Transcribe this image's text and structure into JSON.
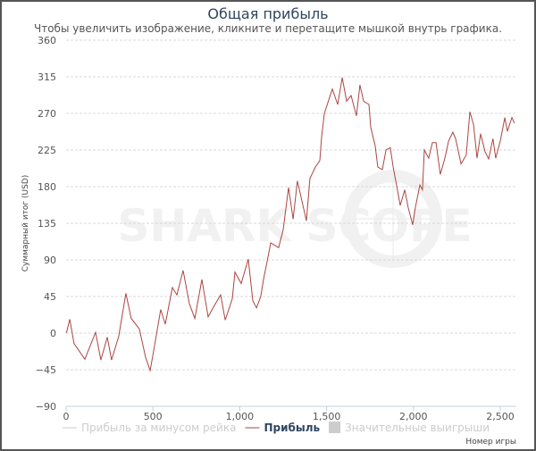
{
  "chart_data": {
    "type": "line",
    "title": "Общая прибыль",
    "subtitle": "Чтобы увеличить изображение, кликните и перетащите мышкой внутрь графика.",
    "xlabel": "Номер игры",
    "ylabel": "Суммарный итог (USD)",
    "xlim": [
      0,
      2600
    ],
    "ylim": [
      -90,
      360
    ],
    "x_ticks": [
      0,
      500,
      1000,
      1500,
      2000,
      2500
    ],
    "x_tick_labels": [
      "0",
      "500",
      "1,000",
      "1,500",
      "2,000",
      "2,500"
    ],
    "y_ticks": [
      -90,
      -45,
      0,
      45,
      90,
      135,
      180,
      225,
      270,
      315,
      360
    ],
    "y_tick_labels": [
      "−90",
      "−45",
      "0",
      "45",
      "90",
      "135",
      "180",
      "225",
      "270",
      "315",
      "360"
    ],
    "grid": true,
    "legend_position": "bottom",
    "legend": [
      {
        "name": "Прибыль за минусом рейка",
        "color": "#cccccc",
        "active": false
      },
      {
        "name": "Прибыль",
        "color": "#aa4643",
        "active": true
      },
      {
        "name": "Значительные выигрыши",
        "color": "#cccccc",
        "active": false
      }
    ],
    "watermark": "SHARK SCOPE",
    "series": [
      {
        "name": "Прибыль",
        "color": "#aa4643",
        "x": [
          0,
          5,
          21,
          46,
          108,
          170,
          200,
          237,
          262,
          303,
          344,
          375,
          422,
          458,
          484,
          509,
          545,
          571,
          612,
          638,
          674,
          710,
          741,
          782,
          818,
          854,
          890,
          916,
          957,
          972,
          1008,
          1034,
          1049,
          1075,
          1096,
          1121,
          1137,
          1163,
          1178,
          1224,
          1250,
          1281,
          1307,
          1332,
          1384,
          1404,
          1435,
          1461,
          1471,
          1487,
          1533,
          1564,
          1590,
          1615,
          1641,
          1672,
          1692,
          1713,
          1744,
          1754,
          1780,
          1795,
          1821,
          1842,
          1867,
          1883,
          1908,
          1924,
          1950,
          1970,
          1996,
          2011,
          2037,
          2052,
          2063,
          2088,
          2109,
          2130,
          2155,
          2181,
          2202,
          2227,
          2243,
          2274,
          2304,
          2325,
          2346,
          2366,
          2387,
          2412,
          2433,
          2458,
          2474,
          2500,
          2526,
          2541,
          2567,
          2582
        ],
        "y": [
          0,
          3,
          17,
          -13,
          -32,
          1,
          -33,
          -5,
          -33,
          -4,
          49,
          18,
          5,
          -30,
          -46,
          -16,
          29,
          11,
          56,
          47,
          77,
          36,
          18,
          66,
          20,
          34,
          47,
          16,
          42,
          75,
          61,
          80,
          91,
          40,
          31,
          45,
          66,
          94,
          111,
          105,
          127,
          179,
          140,
          187,
          138,
          190,
          204,
          212,
          241,
          270,
          300,
          281,
          314,
          285,
          292,
          267,
          305,
          285,
          281,
          253,
          230,
          204,
          201,
          225,
          228,
          204,
          176,
          157,
          176,
          154,
          133,
          154,
          182,
          176,
          225,
          215,
          234,
          234,
          195,
          215,
          236,
          247,
          239,
          208,
          219,
          272,
          256,
          215,
          245,
          223,
          214,
          239,
          215,
          236,
          265,
          248,
          265,
          258
        ]
      }
    ]
  }
}
